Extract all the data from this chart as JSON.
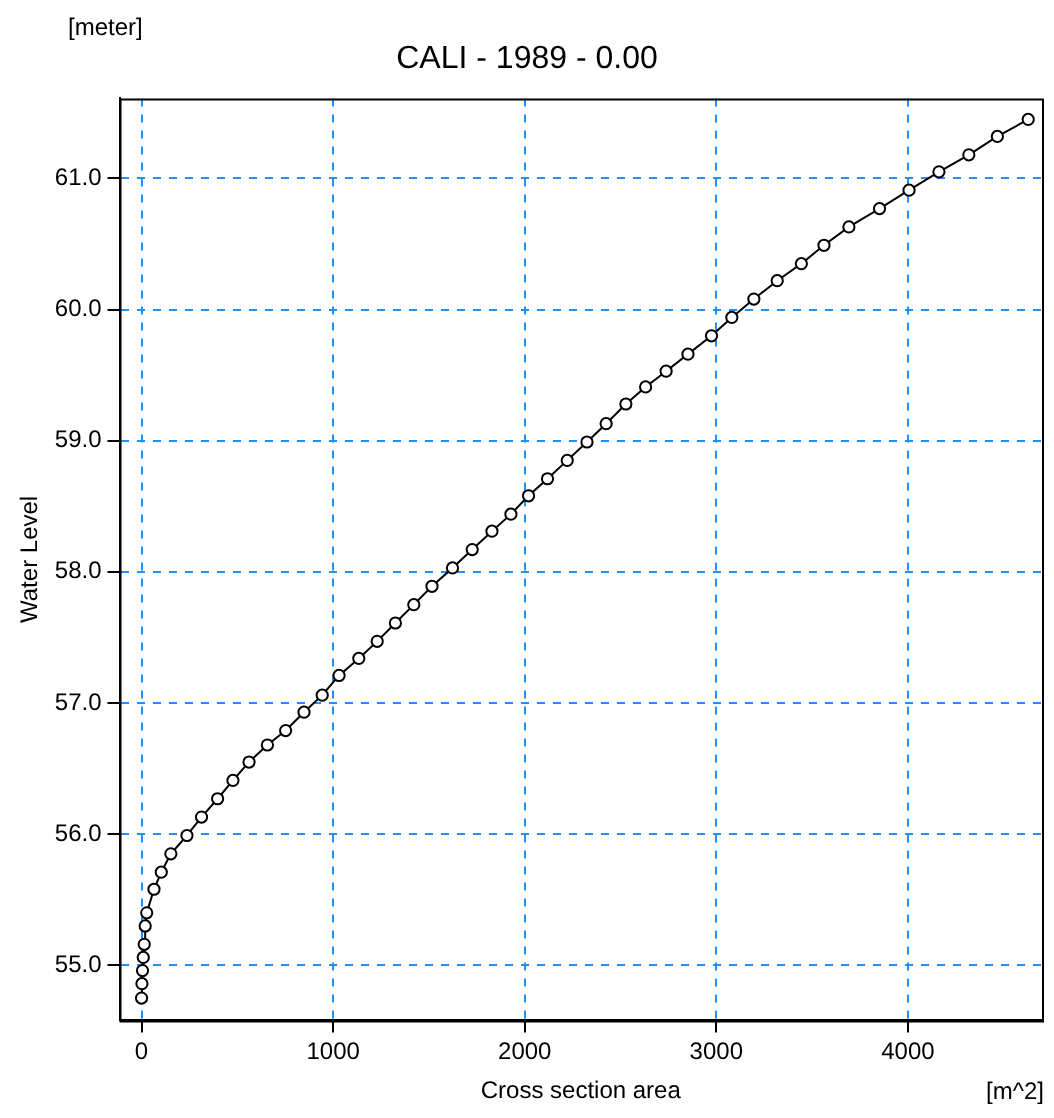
{
  "chart_data": {
    "type": "line",
    "title": "CALI - 1989 - 0.00",
    "xlabel": "Cross section area",
    "ylabel": "Water Level",
    "annotations": [
      "[meter]",
      "[m^2]"
    ],
    "x": [
      0,
      2,
      5,
      9,
      14,
      19,
      27,
      65,
      103,
      153,
      237,
      313,
      397,
      477,
      561,
      657,
      752,
      848,
      943,
      1031,
      1134,
      1230,
      1325,
      1421,
      1516,
      1623,
      1726,
      1829,
      1928,
      2020,
      2119,
      2222,
      2325,
      2425,
      2528,
      2631,
      2738,
      2852,
      2975,
      3081,
      3196,
      3318,
      3444,
      3562,
      3692,
      3852,
      4006,
      4162,
      4318,
      4467,
      4628
    ],
    "series": [
      {
        "color": "#000000",
        "values": [
          54.75,
          54.86,
          54.96,
          55.06,
          55.16,
          55.3,
          55.4,
          55.58,
          55.71,
          55.85,
          55.99,
          56.13,
          56.27,
          56.41,
          56.55,
          56.68,
          56.79,
          56.93,
          57.06,
          57.21,
          57.34,
          57.47,
          57.61,
          57.75,
          57.89,
          58.03,
          58.17,
          58.31,
          58.44,
          58.58,
          58.71,
          58.85,
          58.99,
          59.13,
          59.28,
          59.41,
          59.53,
          59.66,
          59.8,
          59.94,
          60.08,
          60.22,
          60.35,
          60.49,
          60.63,
          60.77,
          60.91,
          61.05,
          61.18,
          61.32,
          61.45
        ]
      }
    ],
    "xlim": [
      -115,
      4700
    ],
    "xticks": [
      0,
      1000,
      2000,
      3000,
      4000
    ],
    "ylim": [
      54.58,
      61.61
    ],
    "yticks": [
      {
        "value": 55,
        "label": "55.0"
      },
      {
        "value": 56,
        "label": "56.0"
      },
      {
        "value": 57,
        "label": "57.0"
      },
      {
        "value": 58,
        "label": "58.0"
      },
      {
        "value": 59,
        "label": "59.0"
      },
      {
        "value": 60,
        "label": "60.0"
      },
      {
        "value": 61,
        "label": "61.0"
      }
    ],
    "grid": true,
    "legend": false,
    "marker": "circle",
    "line_style": "solid"
  }
}
